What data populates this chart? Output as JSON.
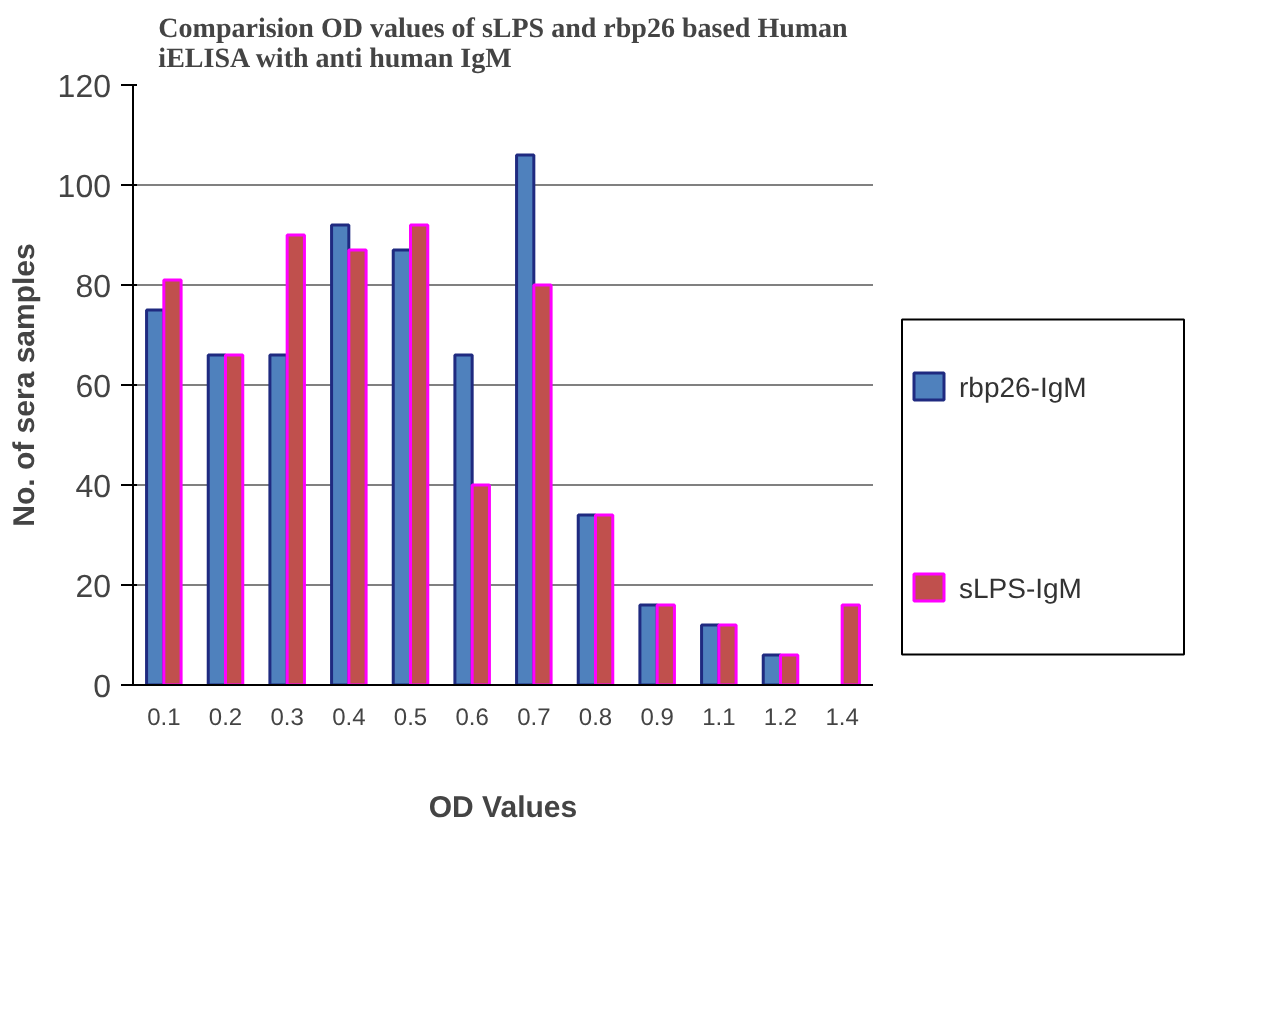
{
  "chart_data": {
    "type": "bar",
    "title": "Comparision OD values of  sLPS and rbp26 based Human iELISA with anti human IgM",
    "xlabel": "OD Values",
    "ylabel": "No. of sera samples",
    "categories": [
      "0.1",
      "0.2",
      "0.3",
      "0.4",
      "0.5",
      "0.6",
      "0.7",
      "0.8",
      "0.9",
      "1.1",
      "1.2",
      "1.4"
    ],
    "series": [
      {
        "name": "rbp26-IgM",
        "color": "#4f81bd",
        "values": [
          75,
          66,
          66,
          92,
          87,
          66,
          106,
          34,
          16,
          12,
          6,
          null
        ]
      },
      {
        "name": "sLPS-IgM",
        "color": "#c0504d",
        "values": [
          81,
          66,
          90,
          87,
          92,
          40,
          80,
          34,
          16,
          12,
          6,
          16
        ]
      }
    ],
    "ylim": [
      0,
      120
    ],
    "yticks": [
      0,
      20,
      40,
      60,
      80,
      100,
      120
    ],
    "grid": "y",
    "legend": "right"
  }
}
